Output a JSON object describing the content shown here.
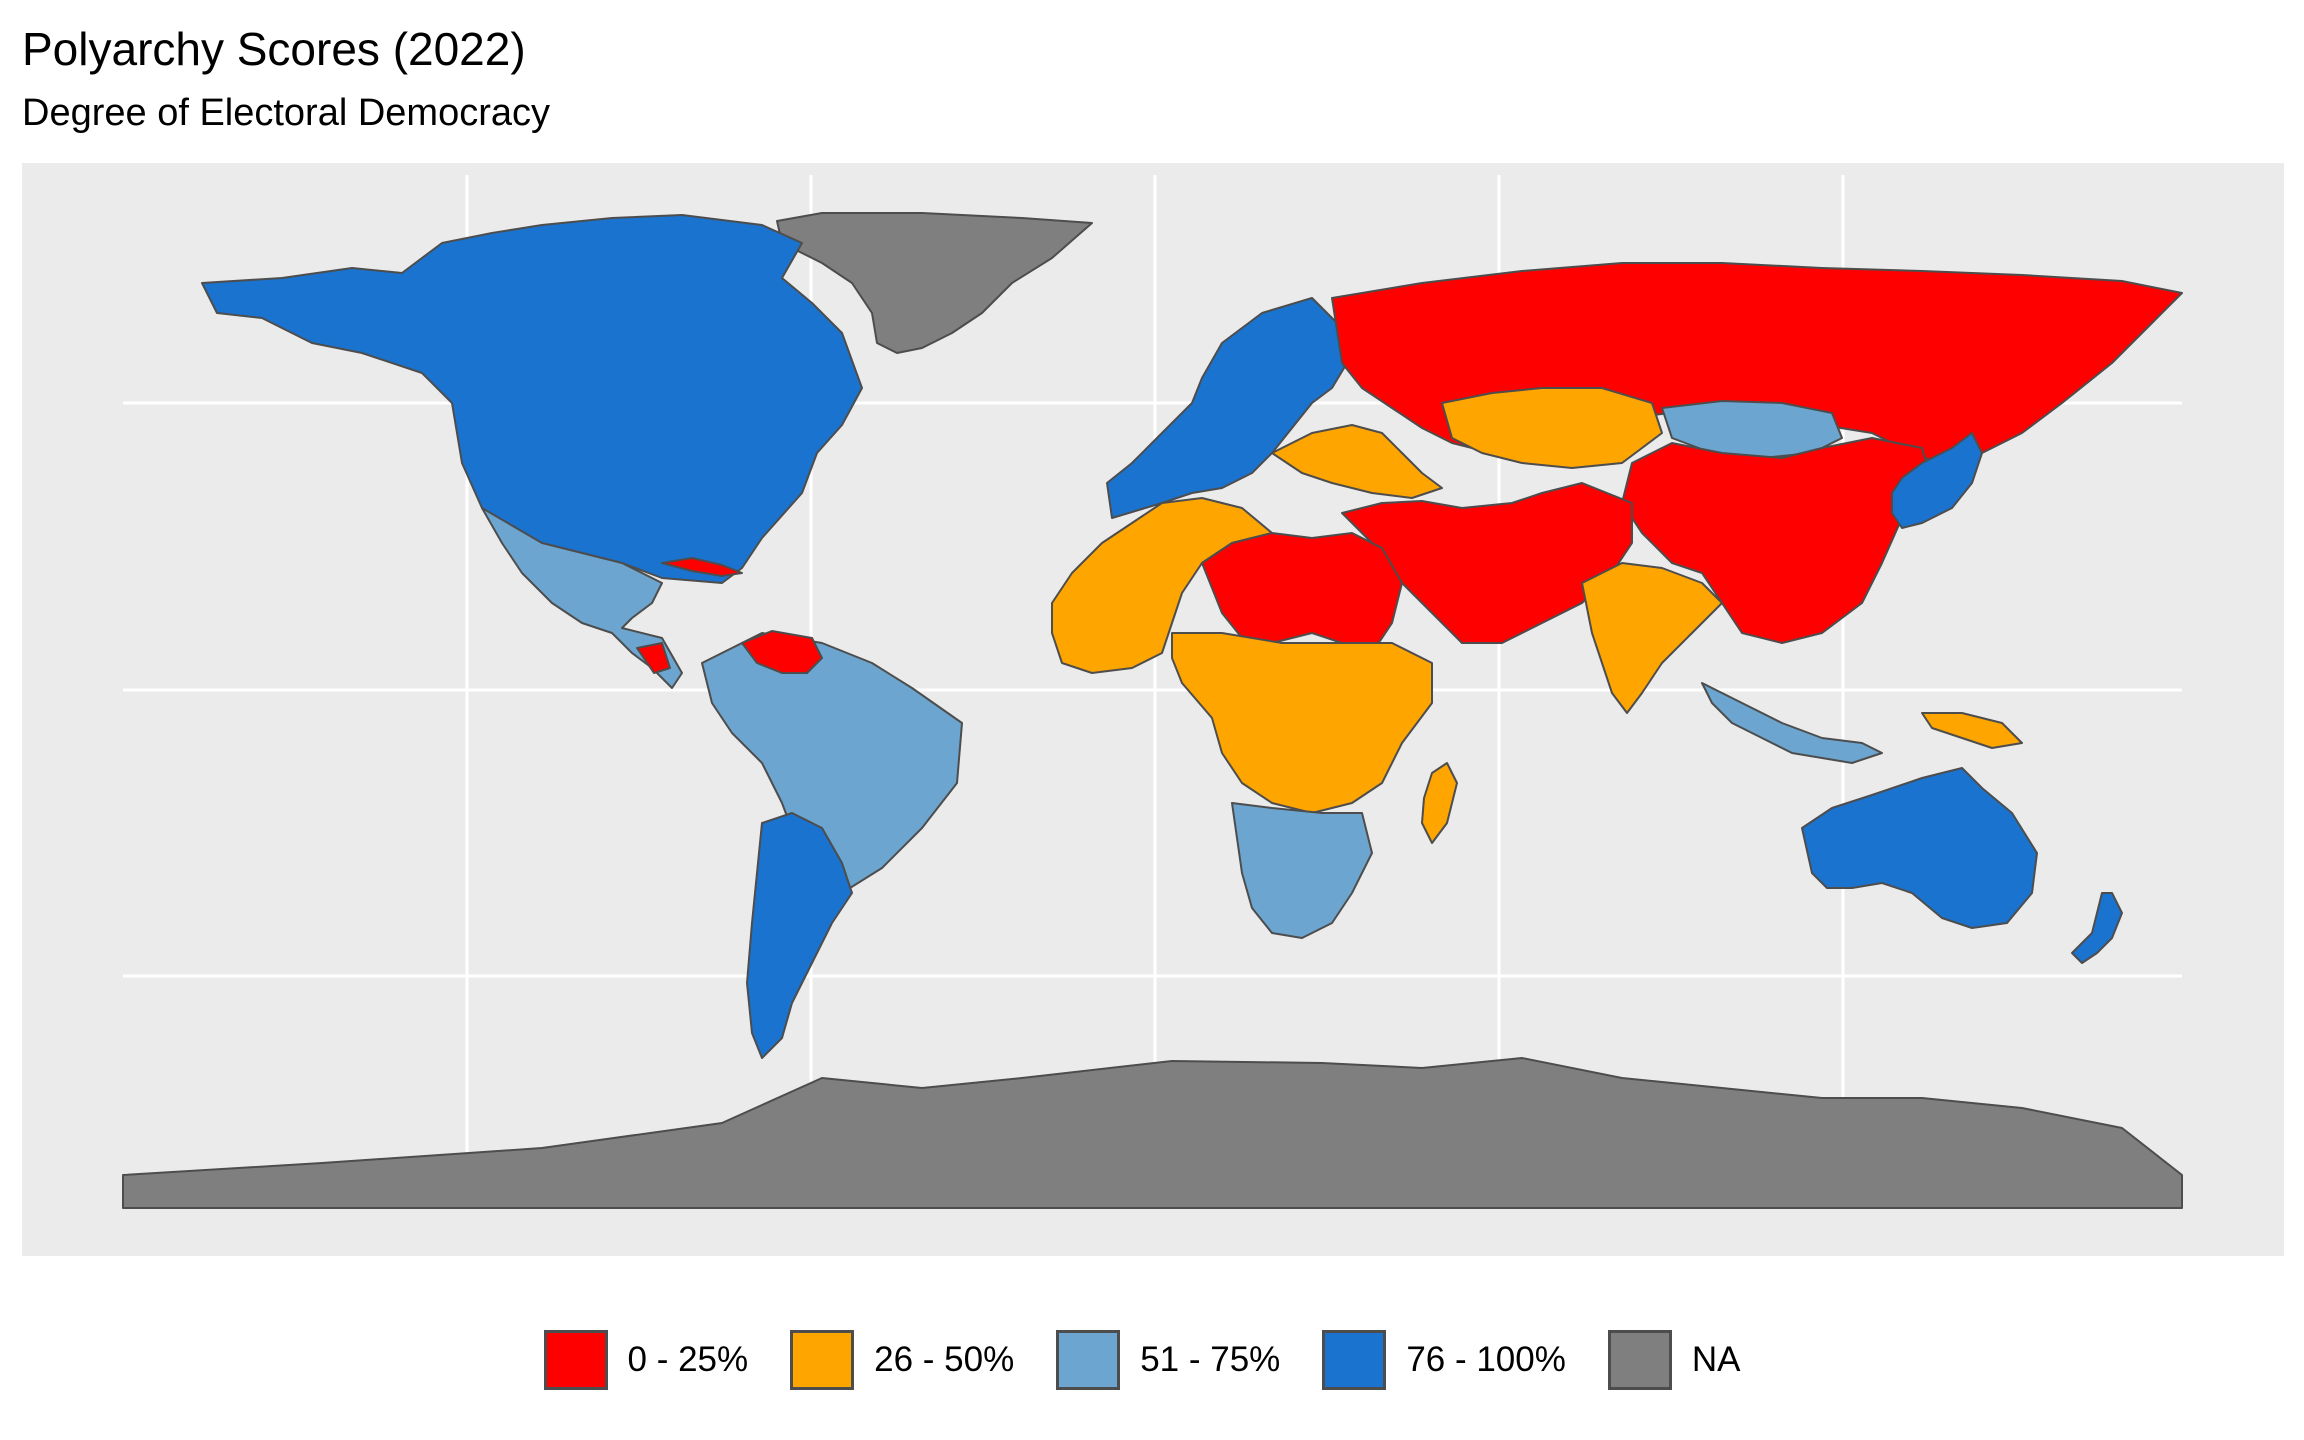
{
  "title": "Polyarchy Scores (2022)",
  "subtitle": "Degree of Electoral Democracy",
  "colors": {
    "panel_background": "#ebebeb",
    "gridline": "#ffffff",
    "country_border": "#4d4d4d",
    "cat_0_25": "#ff0000",
    "cat_26_50": "#ffa500",
    "cat_51_75": "#6ca6d0",
    "cat_76_100": "#1a73cf",
    "cat_na": "#7f7f7f"
  },
  "legend": [
    {
      "label": "0 - 25%",
      "color": "#ff0000"
    },
    {
      "label": "26 - 50%",
      "color": "#ffa500"
    },
    {
      "label": "51 - 75%",
      "color": "#6ca6d0"
    },
    {
      "label": "76 - 100%",
      "color": "#1a73cf"
    },
    {
      "label": "NA",
      "color": "#7f7f7f"
    }
  ],
  "regions": [
    {
      "name": "Canada / United States",
      "category": "76 - 100%",
      "color": "#1a73cf"
    },
    {
      "name": "Greenland",
      "category": "NA",
      "color": "#7f7f7f"
    },
    {
      "name": "Mexico / Central America",
      "category": "51 - 75%",
      "color": "#6ca6d0"
    },
    {
      "name": "Cuba",
      "category": "0 - 25%",
      "color": "#ff0000"
    },
    {
      "name": "Nicaragua",
      "category": "0 - 25%",
      "color": "#ff0000"
    },
    {
      "name": "Venezuela",
      "category": "0 - 25%",
      "color": "#ff0000"
    },
    {
      "name": "Brazil / South America",
      "category": "51 - 75%",
      "color": "#6ca6d0"
    },
    {
      "name": "Chile / Argentina / Uruguay",
      "category": "76 - 100%",
      "color": "#1a73cf"
    },
    {
      "name": "Western Europe",
      "category": "76 - 100%",
      "color": "#1a73cf"
    },
    {
      "name": "Turkey / Eastern Europe",
      "category": "26 - 50%",
      "color": "#ffa500"
    },
    {
      "name": "Russia",
      "category": "0 - 25%",
      "color": "#ff0000"
    },
    {
      "name": "Kazakhstan",
      "category": "26 - 50%",
      "color": "#ffa500"
    },
    {
      "name": "Mongolia",
      "category": "51 - 75%",
      "color": "#6ca6d0"
    },
    {
      "name": "China",
      "category": "0 - 25%",
      "color": "#ff0000"
    },
    {
      "name": "Middle East",
      "category": "0 - 25%",
      "color": "#ff0000"
    },
    {
      "name": "India",
      "category": "26 - 50%",
      "color": "#ffa500"
    },
    {
      "name": "Japan / South Korea",
      "category": "76 - 100%",
      "color": "#1a73cf"
    },
    {
      "name": "Indonesia",
      "category": "51 - 75%",
      "color": "#6ca6d0"
    },
    {
      "name": "North Africa",
      "category": "26 - 50%",
      "color": "#ffa500"
    },
    {
      "name": "Libya / Egypt / Sudan",
      "category": "0 - 25%",
      "color": "#ff0000"
    },
    {
      "name": "Central Africa",
      "category": "26 - 50%",
      "color": "#ffa500"
    },
    {
      "name": "Southern Africa",
      "category": "51 - 75%",
      "color": "#6ca6d0"
    },
    {
      "name": "Madagascar",
      "category": "26 - 50%",
      "color": "#ffa500"
    },
    {
      "name": "Australia",
      "category": "76 - 100%",
      "color": "#1a73cf"
    },
    {
      "name": "New Zealand",
      "category": "76 - 100%",
      "color": "#1a73cf"
    },
    {
      "name": "Papua New Guinea",
      "category": "26 - 50%",
      "color": "#ffa500"
    },
    {
      "name": "Antarctica",
      "category": "NA",
      "color": "#7f7f7f"
    }
  ]
}
